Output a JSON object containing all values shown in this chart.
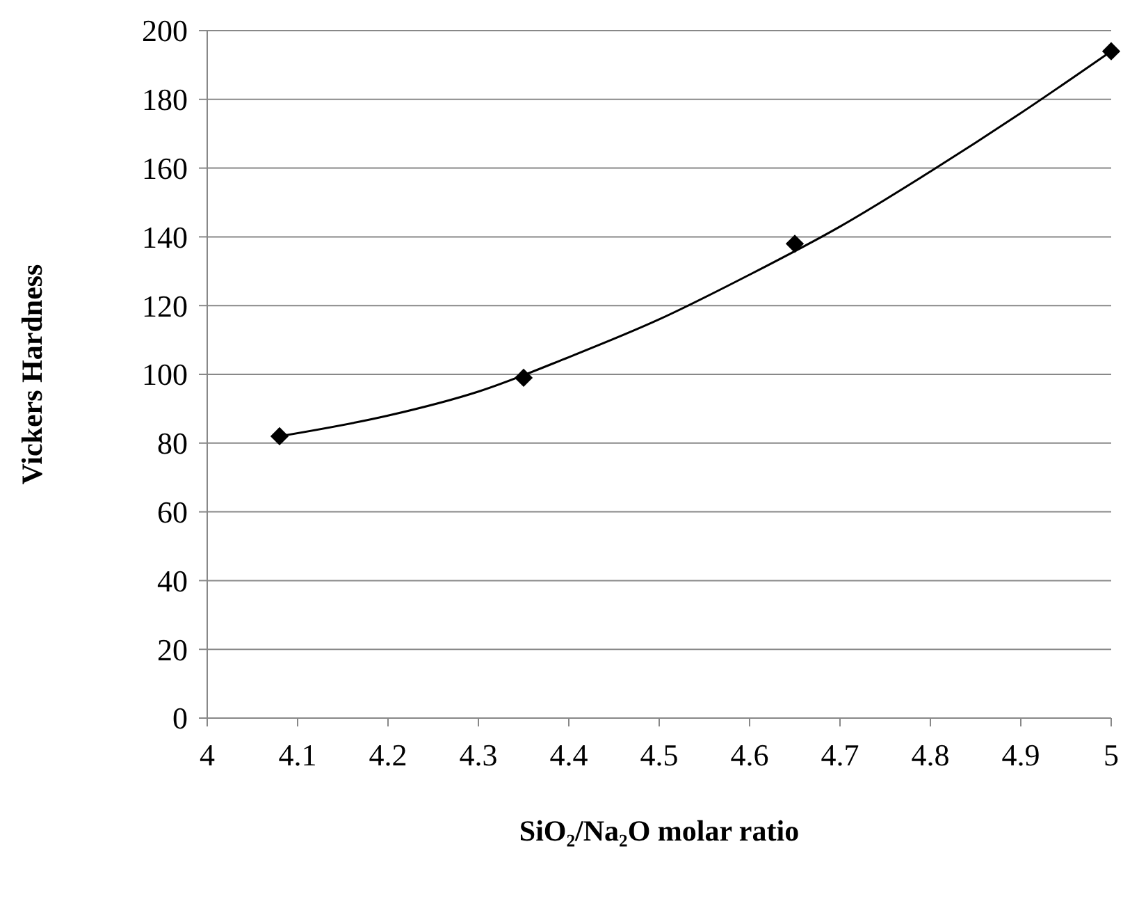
{
  "chart_data": {
    "type": "scatter",
    "xlabel": "SiO₂/Na₂O molar ratio",
    "ylabel": "Vickers Hardness",
    "xlim": [
      4,
      5
    ],
    "xticks": [
      4,
      4.1,
      4.2,
      4.3,
      4.4,
      4.5,
      4.6,
      4.7,
      4.8,
      4.9,
      5
    ],
    "ylim": [
      0,
      200
    ],
    "yticks": [
      0,
      20,
      40,
      60,
      80,
      100,
      120,
      140,
      160,
      180,
      200
    ],
    "grid": "y",
    "marker": "diamond",
    "series": [
      {
        "type": "line",
        "marker": "none",
        "color": "#000000",
        "x": [
          4.08,
          4.2,
          4.3,
          4.4,
          4.5,
          4.6,
          4.7,
          4.8,
          4.9,
          5.0
        ],
        "values": [
          82,
          88,
          95,
          105,
          116,
          129,
          143,
          159,
          176,
          194
        ]
      },
      {
        "color": "#000000",
        "x": [
          4.08,
          4.35,
          4.65,
          5.0
        ],
        "values": [
          82,
          99,
          138,
          194
        ]
      }
    ]
  }
}
